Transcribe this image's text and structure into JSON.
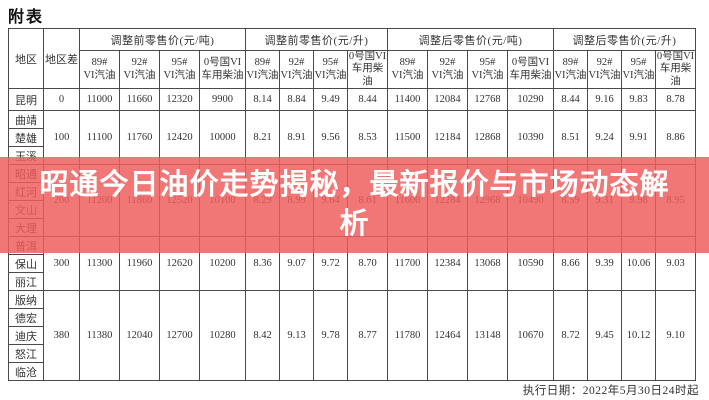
{
  "page_title": "附表",
  "colors": {
    "banner_bg": "#ee5c5c",
    "banner_text": "#ffffff",
    "table_border": "#4a4a4a"
  },
  "banner": {
    "text": "昭通今日油价走势揭秘，最新报价与市场动态解析"
  },
  "footer": {
    "execution_date": "执行日期：2022年5月30日24时起"
  },
  "table": {
    "corner_headers": [
      "地区",
      "地区差"
    ],
    "group_headers": [
      "调整前零售价(元/吨)",
      "调整前零售价(元/升)",
      "调整后零售价(元/吨)",
      "调整后零售价(元/升)"
    ],
    "product_headers": [
      "89#\nVI汽油",
      "92#\nVI汽油",
      "95#\nVI汽油",
      "0号国VI\n车用柴油"
    ],
    "row_groups": [
      {
        "regions": [
          "昆明"
        ],
        "diff": "0",
        "values": [
          "11000",
          "11660",
          "12320",
          "9900",
          "8.14",
          "8.84",
          "9.49",
          "8.44",
          "11400",
          "12084",
          "12768",
          "10290",
          "8.44",
          "9.16",
          "9.83",
          "8.78"
        ]
      },
      {
        "regions": [
          "曲靖",
          "楚雄",
          "玉溪"
        ],
        "diff": "100",
        "values": [
          "11100",
          "11760",
          "12420",
          "10000",
          "8.21",
          "8.91",
          "9.56",
          "8.53",
          "11500",
          "12184",
          "12868",
          "10390",
          "8.51",
          "9.24",
          "9.91",
          "8.86"
        ]
      },
      {
        "regions": [
          "昭通",
          "红河",
          "文山",
          "大理"
        ],
        "diff": "200",
        "values": [
          "11200",
          "11860",
          "12520",
          "10100",
          "8.29",
          "8.99",
          "9.64",
          "8.61",
          "11600",
          "12284",
          "12968",
          "10490",
          "8.59",
          "9.31",
          "9.98",
          "8.95"
        ]
      },
      {
        "regions": [
          "普洱",
          "保山",
          "丽江"
        ],
        "diff": "300",
        "values": [
          "11300",
          "11960",
          "12620",
          "10200",
          "8.36",
          "9.07",
          "9.72",
          "8.70",
          "11700",
          "12384",
          "13068",
          "10590",
          "8.66",
          "9.39",
          "10.06",
          "9.03"
        ]
      },
      {
        "regions": [
          "版纳",
          "德宏",
          "迪庆",
          "怒江",
          "临沧"
        ],
        "diff": "380",
        "values": [
          "11380",
          "12040",
          "12700",
          "10280",
          "8.42",
          "9.13",
          "9.78",
          "8.77",
          "11780",
          "12464",
          "13148",
          "10670",
          "8.72",
          "9.45",
          "10.12",
          "9.10"
        ]
      }
    ]
  }
}
